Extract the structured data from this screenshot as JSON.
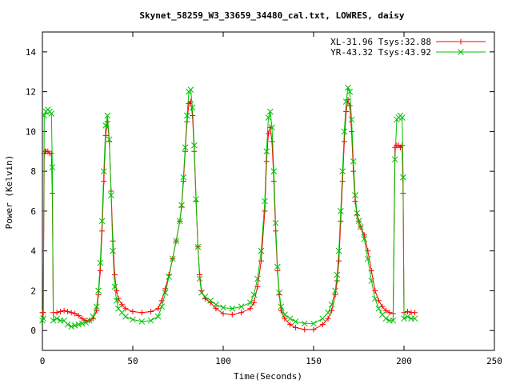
{
  "chart_data": {
    "type": "line",
    "title": "Skynet_58259_W3_33659_34480_cal.txt, LOWRES, daisy",
    "xlabel": "Time(Seconds)",
    "ylabel": "Power (Kelvin)",
    "xlim": [
      0,
      250
    ],
    "ylim": [
      -1,
      15
    ],
    "xticks": [
      0,
      50,
      100,
      150,
      200,
      250
    ],
    "yticks": [
      0,
      2,
      4,
      6,
      8,
      10,
      12,
      14
    ],
    "grid": false,
    "legend_position": "top-right",
    "series": [
      {
        "name": "XL-31.96 Tsys:32.88",
        "color": "#ff0000",
        "marker": "plus",
        "points": [
          [
            0,
            0.9
          ],
          [
            0.5,
            0.9
          ],
          [
            1,
            8.9
          ],
          [
            1.5,
            9.0
          ],
          [
            2,
            9.0
          ],
          [
            3,
            9.0
          ],
          [
            4,
            8.9
          ],
          [
            5,
            8.9
          ],
          [
            5.5,
            6.9
          ],
          [
            6,
            0.9
          ],
          [
            8,
            0.9
          ],
          [
            10,
            0.95
          ],
          [
            12,
            1.0
          ],
          [
            14,
            0.95
          ],
          [
            16,
            0.9
          ],
          [
            18,
            0.85
          ],
          [
            20,
            0.75
          ],
          [
            22,
            0.6
          ],
          [
            24,
            0.5
          ],
          [
            26,
            0.5
          ],
          [
            28,
            0.6
          ],
          [
            30,
            1.0
          ],
          [
            31,
            1.8
          ],
          [
            32,
            3.0
          ],
          [
            33,
            5.0
          ],
          [
            34,
            7.5
          ],
          [
            35,
            9.8
          ],
          [
            36,
            10.5
          ],
          [
            37,
            9.5
          ],
          [
            38,
            7.0
          ],
          [
            39,
            4.5
          ],
          [
            40,
            2.8
          ],
          [
            41,
            2.0
          ],
          [
            42,
            1.6
          ],
          [
            44,
            1.3
          ],
          [
            46,
            1.1
          ],
          [
            50,
            0.95
          ],
          [
            55,
            0.9
          ],
          [
            60,
            0.95
          ],
          [
            64,
            1.1
          ],
          [
            66,
            1.5
          ],
          [
            68,
            2.1
          ],
          [
            70,
            2.8
          ],
          [
            72,
            3.6
          ],
          [
            74,
            4.5
          ],
          [
            76,
            5.5
          ],
          [
            77,
            6.2
          ],
          [
            78,
            7.5
          ],
          [
            79,
            9.0
          ],
          [
            80,
            10.5
          ],
          [
            81,
            11.4
          ],
          [
            82,
            11.5
          ],
          [
            83,
            10.8
          ],
          [
            84,
            9.0
          ],
          [
            85,
            6.5
          ],
          [
            86,
            4.2
          ],
          [
            87,
            2.8
          ],
          [
            88,
            2.0
          ],
          [
            90,
            1.6
          ],
          [
            93,
            1.4
          ],
          [
            96,
            1.1
          ],
          [
            100,
            0.85
          ],
          [
            105,
            0.8
          ],
          [
            110,
            0.9
          ],
          [
            115,
            1.1
          ],
          [
            117,
            1.4
          ],
          [
            119,
            2.2
          ],
          [
            121,
            3.5
          ],
          [
            123,
            6.0
          ],
          [
            124,
            8.5
          ],
          [
            125,
            9.9
          ],
          [
            126,
            10.2
          ],
          [
            127,
            9.5
          ],
          [
            128,
            7.5
          ],
          [
            129,
            5.0
          ],
          [
            130,
            3.0
          ],
          [
            131,
            1.8
          ],
          [
            132,
            1.0
          ],
          [
            134,
            0.6
          ],
          [
            137,
            0.3
          ],
          [
            140,
            0.15
          ],
          [
            145,
            0.05
          ],
          [
            150,
            0.05
          ],
          [
            155,
            0.3
          ],
          [
            158,
            0.6
          ],
          [
            160,
            1.0
          ],
          [
            162,
            1.8
          ],
          [
            163,
            2.5
          ],
          [
            164,
            3.5
          ],
          [
            165,
            5.5
          ],
          [
            166,
            7.5
          ],
          [
            167,
            9.5
          ],
          [
            168,
            11.0
          ],
          [
            169,
            11.6
          ],
          [
            170,
            11.3
          ],
          [
            171,
            10.0
          ],
          [
            172,
            8.0
          ],
          [
            173,
            6.5
          ],
          [
            174,
            5.8
          ],
          [
            175,
            5.5
          ],
          [
            176,
            5.2
          ],
          [
            178,
            4.8
          ],
          [
            180,
            4.0
          ],
          [
            182,
            3.0
          ],
          [
            184,
            2.0
          ],
          [
            186,
            1.5
          ],
          [
            188,
            1.2
          ],
          [
            190,
            1.0
          ],
          [
            192,
            0.9
          ],
          [
            194,
            0.85
          ],
          [
            195,
            9.2
          ],
          [
            196,
            9.3
          ],
          [
            197,
            9.3
          ],
          [
            198,
            9.2
          ],
          [
            199,
            9.3
          ],
          [
            199.5,
            6.9
          ],
          [
            200,
            0.9
          ],
          [
            202,
            0.95
          ],
          [
            204,
            0.9
          ],
          [
            206,
            0.9
          ]
        ]
      },
      {
        "name": "YR-43.32 Tsys:43.92",
        "color": "#00c000",
        "marker": "cross",
        "points": [
          [
            0,
            0.5
          ],
          [
            0.5,
            0.6
          ],
          [
            1,
            10.8
          ],
          [
            2,
            11.0
          ],
          [
            3,
            11.1
          ],
          [
            4,
            11.0
          ],
          [
            5,
            10.9
          ],
          [
            5.5,
            8.2
          ],
          [
            6,
            0.5
          ],
          [
            8,
            0.6
          ],
          [
            10,
            0.5
          ],
          [
            12,
            0.5
          ],
          [
            14,
            0.3
          ],
          [
            16,
            0.2
          ],
          [
            18,
            0.25
          ],
          [
            20,
            0.3
          ],
          [
            22,
            0.35
          ],
          [
            24,
            0.4
          ],
          [
            26,
            0.5
          ],
          [
            28,
            0.7
          ],
          [
            30,
            1.2
          ],
          [
            31,
            2.0
          ],
          [
            32,
            3.4
          ],
          [
            33,
            5.5
          ],
          [
            34,
            8.0
          ],
          [
            35,
            10.3
          ],
          [
            36,
            10.8
          ],
          [
            37,
            9.6
          ],
          [
            38,
            6.8
          ],
          [
            39,
            4.0
          ],
          [
            40,
            2.2
          ],
          [
            41,
            1.5
          ],
          [
            42,
            1.1
          ],
          [
            44,
            0.9
          ],
          [
            46,
            0.7
          ],
          [
            50,
            0.55
          ],
          [
            55,
            0.45
          ],
          [
            60,
            0.5
          ],
          [
            64,
            0.7
          ],
          [
            66,
            1.2
          ],
          [
            68,
            1.9
          ],
          [
            70,
            2.7
          ],
          [
            72,
            3.6
          ],
          [
            74,
            4.5
          ],
          [
            76,
            5.5
          ],
          [
            77,
            6.3
          ],
          [
            78,
            7.7
          ],
          [
            79,
            9.2
          ],
          [
            80,
            10.8
          ],
          [
            81,
            12.0
          ],
          [
            82,
            12.1
          ],
          [
            83,
            11.2
          ],
          [
            84,
            9.3
          ],
          [
            85,
            6.6
          ],
          [
            86,
            4.2
          ],
          [
            87,
            2.6
          ],
          [
            88,
            1.9
          ],
          [
            90,
            1.7
          ],
          [
            93,
            1.5
          ],
          [
            96,
            1.3
          ],
          [
            100,
            1.15
          ],
          [
            105,
            1.1
          ],
          [
            110,
            1.2
          ],
          [
            115,
            1.4
          ],
          [
            117,
            1.8
          ],
          [
            119,
            2.6
          ],
          [
            121,
            4.0
          ],
          [
            123,
            6.5
          ],
          [
            124,
            9.0
          ],
          [
            125,
            10.7
          ],
          [
            126,
            11.0
          ],
          [
            127,
            10.2
          ],
          [
            128,
            8.0
          ],
          [
            129,
            5.4
          ],
          [
            130,
            3.2
          ],
          [
            131,
            1.9
          ],
          [
            132,
            1.2
          ],
          [
            134,
            0.8
          ],
          [
            137,
            0.6
          ],
          [
            140,
            0.45
          ],
          [
            145,
            0.35
          ],
          [
            150,
            0.35
          ],
          [
            155,
            0.6
          ],
          [
            158,
            0.9
          ],
          [
            160,
            1.3
          ],
          [
            162,
            2.0
          ],
          [
            163,
            2.8
          ],
          [
            164,
            4.0
          ],
          [
            165,
            6.0
          ],
          [
            166,
            8.0
          ],
          [
            167,
            10.0
          ],
          [
            168,
            11.5
          ],
          [
            169,
            12.2
          ],
          [
            170,
            12.0
          ],
          [
            171,
            10.6
          ],
          [
            172,
            8.5
          ],
          [
            173,
            6.8
          ],
          [
            174,
            5.9
          ],
          [
            175,
            5.5
          ],
          [
            176,
            5.2
          ],
          [
            178,
            4.6
          ],
          [
            180,
            3.6
          ],
          [
            182,
            2.5
          ],
          [
            184,
            1.6
          ],
          [
            186,
            1.1
          ],
          [
            188,
            0.8
          ],
          [
            190,
            0.6
          ],
          [
            192,
            0.5
          ],
          [
            194,
            0.5
          ],
          [
            195,
            8.6
          ],
          [
            196,
            10.6
          ],
          [
            197,
            10.7
          ],
          [
            198,
            10.8
          ],
          [
            199,
            10.7
          ],
          [
            199.5,
            7.7
          ],
          [
            200,
            0.6
          ],
          [
            202,
            0.7
          ],
          [
            204,
            0.6
          ],
          [
            206,
            0.6
          ]
        ]
      }
    ]
  }
}
